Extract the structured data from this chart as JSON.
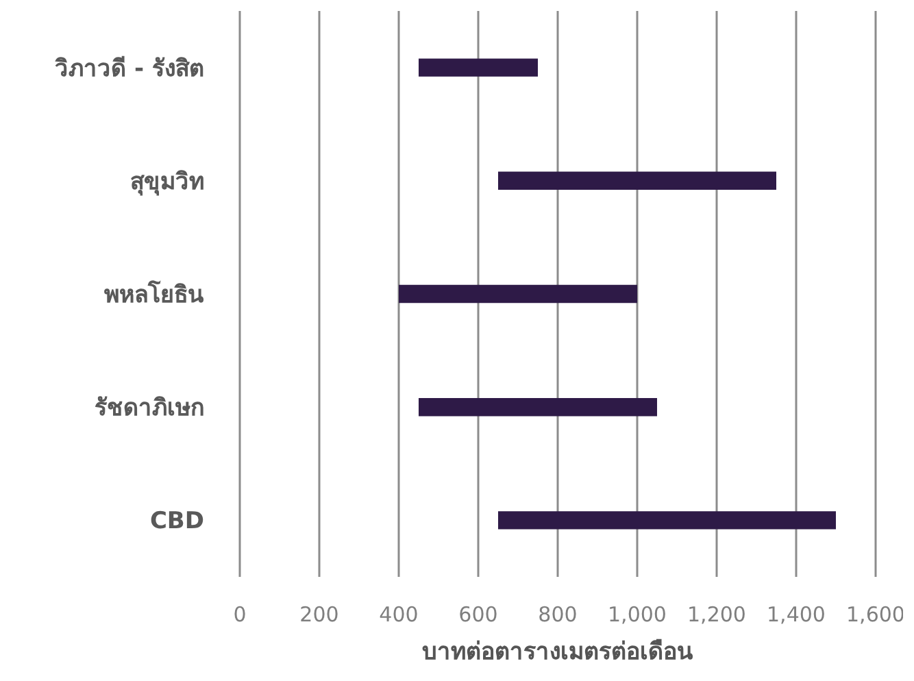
{
  "chart_data": {
    "type": "bar",
    "orientation": "horizontal",
    "xlabel": "บาทต่อตารางเมตรต่อเดือน",
    "categories": [
      "วิภาวดี - รังสิต",
      "สุขุมวิท",
      "พหลโยธิน",
      "รัชดาภิเษก",
      "CBD"
    ],
    "base": [
      450,
      650,
      400,
      450,
      650
    ],
    "values": [
      300,
      700,
      600,
      600,
      850
    ],
    "color": "#2e1a47",
    "xlim": [
      0,
      1600
    ],
    "xticks": [
      0,
      200,
      400,
      600,
      800,
      {
        "value": 1000,
        "label": "1,000"
      },
      {
        "value": 1200,
        "label": "1,200"
      },
      {
        "value": 1400,
        "label": "1,400"
      },
      {
        "value": 1600,
        "label": "1,600"
      }
    ],
    "grid": "x",
    "legend": false
  }
}
